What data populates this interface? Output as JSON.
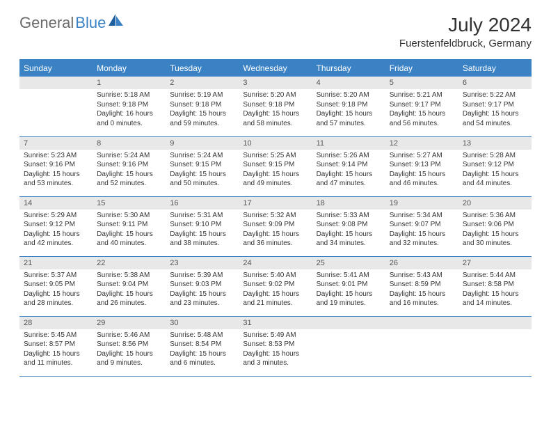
{
  "logo": {
    "part1": "General",
    "part2": "Blue"
  },
  "title": "July 2024",
  "location": "Fuerstenfeldbruck, Germany",
  "colors": {
    "header_bg": "#3b82c4",
    "header_text": "#ffffff",
    "daynum_bg": "#e8e8e8",
    "border": "#3b82c4",
    "logo_gray": "#6b6b6b",
    "logo_blue": "#3b82c4"
  },
  "fonts": {
    "title_size_pt": 21,
    "location_size_pt": 11,
    "header_cell_pt": 9,
    "daynum_pt": 8,
    "body_pt": 7.5
  },
  "dayHeaders": [
    "Sunday",
    "Monday",
    "Tuesday",
    "Wednesday",
    "Thursday",
    "Friday",
    "Saturday"
  ],
  "weeks": [
    [
      null,
      {
        "n": "1",
        "sr": "Sunrise: 5:18 AM",
        "ss": "Sunset: 9:18 PM",
        "dl": "Daylight: 16 hours and 0 minutes."
      },
      {
        "n": "2",
        "sr": "Sunrise: 5:19 AM",
        "ss": "Sunset: 9:18 PM",
        "dl": "Daylight: 15 hours and 59 minutes."
      },
      {
        "n": "3",
        "sr": "Sunrise: 5:20 AM",
        "ss": "Sunset: 9:18 PM",
        "dl": "Daylight: 15 hours and 58 minutes."
      },
      {
        "n": "4",
        "sr": "Sunrise: 5:20 AM",
        "ss": "Sunset: 9:18 PM",
        "dl": "Daylight: 15 hours and 57 minutes."
      },
      {
        "n": "5",
        "sr": "Sunrise: 5:21 AM",
        "ss": "Sunset: 9:17 PM",
        "dl": "Daylight: 15 hours and 56 minutes."
      },
      {
        "n": "6",
        "sr": "Sunrise: 5:22 AM",
        "ss": "Sunset: 9:17 PM",
        "dl": "Daylight: 15 hours and 54 minutes."
      }
    ],
    [
      {
        "n": "7",
        "sr": "Sunrise: 5:23 AM",
        "ss": "Sunset: 9:16 PM",
        "dl": "Daylight: 15 hours and 53 minutes."
      },
      {
        "n": "8",
        "sr": "Sunrise: 5:24 AM",
        "ss": "Sunset: 9:16 PM",
        "dl": "Daylight: 15 hours and 52 minutes."
      },
      {
        "n": "9",
        "sr": "Sunrise: 5:24 AM",
        "ss": "Sunset: 9:15 PM",
        "dl": "Daylight: 15 hours and 50 minutes."
      },
      {
        "n": "10",
        "sr": "Sunrise: 5:25 AM",
        "ss": "Sunset: 9:15 PM",
        "dl": "Daylight: 15 hours and 49 minutes."
      },
      {
        "n": "11",
        "sr": "Sunrise: 5:26 AM",
        "ss": "Sunset: 9:14 PM",
        "dl": "Daylight: 15 hours and 47 minutes."
      },
      {
        "n": "12",
        "sr": "Sunrise: 5:27 AM",
        "ss": "Sunset: 9:13 PM",
        "dl": "Daylight: 15 hours and 46 minutes."
      },
      {
        "n": "13",
        "sr": "Sunrise: 5:28 AM",
        "ss": "Sunset: 9:12 PM",
        "dl": "Daylight: 15 hours and 44 minutes."
      }
    ],
    [
      {
        "n": "14",
        "sr": "Sunrise: 5:29 AM",
        "ss": "Sunset: 9:12 PM",
        "dl": "Daylight: 15 hours and 42 minutes."
      },
      {
        "n": "15",
        "sr": "Sunrise: 5:30 AM",
        "ss": "Sunset: 9:11 PM",
        "dl": "Daylight: 15 hours and 40 minutes."
      },
      {
        "n": "16",
        "sr": "Sunrise: 5:31 AM",
        "ss": "Sunset: 9:10 PM",
        "dl": "Daylight: 15 hours and 38 minutes."
      },
      {
        "n": "17",
        "sr": "Sunrise: 5:32 AM",
        "ss": "Sunset: 9:09 PM",
        "dl": "Daylight: 15 hours and 36 minutes."
      },
      {
        "n": "18",
        "sr": "Sunrise: 5:33 AM",
        "ss": "Sunset: 9:08 PM",
        "dl": "Daylight: 15 hours and 34 minutes."
      },
      {
        "n": "19",
        "sr": "Sunrise: 5:34 AM",
        "ss": "Sunset: 9:07 PM",
        "dl": "Daylight: 15 hours and 32 minutes."
      },
      {
        "n": "20",
        "sr": "Sunrise: 5:36 AM",
        "ss": "Sunset: 9:06 PM",
        "dl": "Daylight: 15 hours and 30 minutes."
      }
    ],
    [
      {
        "n": "21",
        "sr": "Sunrise: 5:37 AM",
        "ss": "Sunset: 9:05 PM",
        "dl": "Daylight: 15 hours and 28 minutes."
      },
      {
        "n": "22",
        "sr": "Sunrise: 5:38 AM",
        "ss": "Sunset: 9:04 PM",
        "dl": "Daylight: 15 hours and 26 minutes."
      },
      {
        "n": "23",
        "sr": "Sunrise: 5:39 AM",
        "ss": "Sunset: 9:03 PM",
        "dl": "Daylight: 15 hours and 23 minutes."
      },
      {
        "n": "24",
        "sr": "Sunrise: 5:40 AM",
        "ss": "Sunset: 9:02 PM",
        "dl": "Daylight: 15 hours and 21 minutes."
      },
      {
        "n": "25",
        "sr": "Sunrise: 5:41 AM",
        "ss": "Sunset: 9:01 PM",
        "dl": "Daylight: 15 hours and 19 minutes."
      },
      {
        "n": "26",
        "sr": "Sunrise: 5:43 AM",
        "ss": "Sunset: 8:59 PM",
        "dl": "Daylight: 15 hours and 16 minutes."
      },
      {
        "n": "27",
        "sr": "Sunrise: 5:44 AM",
        "ss": "Sunset: 8:58 PM",
        "dl": "Daylight: 15 hours and 14 minutes."
      }
    ],
    [
      {
        "n": "28",
        "sr": "Sunrise: 5:45 AM",
        "ss": "Sunset: 8:57 PM",
        "dl": "Daylight: 15 hours and 11 minutes."
      },
      {
        "n": "29",
        "sr": "Sunrise: 5:46 AM",
        "ss": "Sunset: 8:56 PM",
        "dl": "Daylight: 15 hours and 9 minutes."
      },
      {
        "n": "30",
        "sr": "Sunrise: 5:48 AM",
        "ss": "Sunset: 8:54 PM",
        "dl": "Daylight: 15 hours and 6 minutes."
      },
      {
        "n": "31",
        "sr": "Sunrise: 5:49 AM",
        "ss": "Sunset: 8:53 PM",
        "dl": "Daylight: 15 hours and 3 minutes."
      },
      null,
      null,
      null
    ]
  ]
}
